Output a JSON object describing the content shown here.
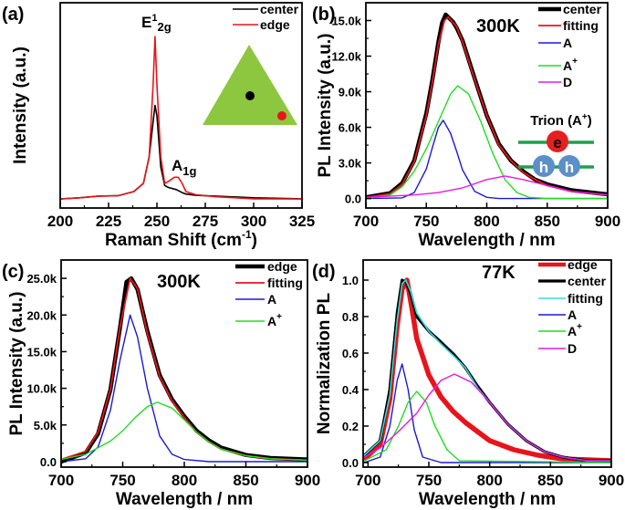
{
  "colors": {
    "black": "#000000",
    "red": "#e8141b",
    "blue": "#1a1ad6",
    "green": "#22dd22",
    "magenta": "#e619e6",
    "cyan": "#33dddd",
    "flake": "#8dc63f",
    "hole": "#5b8fc9"
  },
  "chart_data": [
    {
      "panel_label": "(a)",
      "type": "line",
      "xlabel": "Raman Shift (cm",
      "xlabel_sup": "-1",
      "xlabel_end": ")",
      "ylabel": "Intensity (a.u.)",
      "xlim": [
        200,
        325
      ],
      "ylim": [
        0,
        1
      ],
      "xticks": [
        200,
        225,
        250,
        275,
        300,
        325
      ],
      "xtick_labels": [
        "200",
        "225",
        "250",
        "275",
        "300",
        "325"
      ],
      "yticks": [],
      "ytick_labels": [],
      "legend": "top-right",
      "annotations": [
        {
          "base": "E",
          "sup": "1",
          "sub": "2g"
        },
        {
          "base": "A",
          "sup": "",
          "sub": "1g"
        }
      ],
      "inset": {
        "shape": "triangle",
        "markers": [
          {
            "name": "center",
            "color": "#000000"
          },
          {
            "name": "edge",
            "color": "#e8141b"
          }
        ]
      },
      "series": [
        {
          "name": "center",
          "color": "#000000",
          "width": 1.6,
          "x": [
            200,
            210,
            220,
            230,
            238,
            243,
            246,
            248,
            249,
            250,
            252,
            254,
            256,
            260,
            263,
            265,
            270,
            280,
            300,
            325
          ],
          "y": [
            0.044,
            0.05,
            0.058,
            0.06,
            0.08,
            0.12,
            0.25,
            0.42,
            0.5,
            0.45,
            0.2,
            0.11,
            0.1,
            0.09,
            0.075,
            0.068,
            0.062,
            0.058,
            0.05,
            0.045
          ]
        },
        {
          "name": "edge",
          "color": "#e8141b",
          "width": 1.6,
          "x": [
            200,
            210,
            220,
            230,
            238,
            243,
            246,
            248,
            249,
            250,
            252,
            254,
            256,
            259,
            261,
            263,
            265,
            270,
            280,
            300,
            325
          ],
          "y": [
            0.044,
            0.05,
            0.058,
            0.06,
            0.08,
            0.12,
            0.25,
            0.6,
            0.835,
            0.6,
            0.25,
            0.12,
            0.13,
            0.15,
            0.15,
            0.12,
            0.08,
            0.065,
            0.055,
            0.045,
            0.044
          ]
        }
      ]
    },
    {
      "panel_label": "(b)",
      "type": "line",
      "title": "300K",
      "xlabel": "Wavelength / nm",
      "ylabel": "PL Intensity (a.u.)",
      "xlim": [
        700,
        900
      ],
      "ylim": [
        -0.8,
        16.5
      ],
      "y_unit": "k",
      "xticks": [
        700,
        750,
        800,
        850,
        900
      ],
      "xtick_labels": [
        "700",
        "750",
        "800",
        "850",
        "900"
      ],
      "yticks": [
        0,
        3,
        6,
        9,
        12,
        15
      ],
      "ytick_labels": [
        "0.0",
        "3.0k",
        "6.0k",
        "9.0k",
        "12.0k",
        "15.0k"
      ],
      "legend": "top-right",
      "inset": {
        "title": "Trion (A",
        "title_sup": "+",
        "title_end": ")",
        "electron": "e",
        "hole": "h"
      },
      "series": [
        {
          "name": "center",
          "color": "#000000",
          "width": 4.5,
          "x": [
            700,
            720,
            730,
            740,
            750,
            755,
            760,
            763,
            766,
            768,
            772,
            775,
            780,
            790,
            800,
            810,
            820,
            830,
            840,
            850,
            870,
            900
          ],
          "y": [
            0.1,
            0.45,
            1.3,
            3.2,
            7.2,
            10,
            13.2,
            14.8,
            15.5,
            15.3,
            14.9,
            14.4,
            13.3,
            10.1,
            7,
            4.6,
            3.2,
            2.3,
            1.6,
            1.2,
            0.7,
            0.35
          ]
        },
        {
          "name": "fitting",
          "color": "#e8141b",
          "width": 1.8,
          "x": [
            700,
            720,
            730,
            740,
            750,
            755,
            760,
            765,
            768,
            775,
            780,
            790,
            800,
            810,
            820,
            830,
            840,
            850,
            870,
            900
          ],
          "y": [
            0.1,
            0.4,
            1.2,
            3.1,
            7,
            9.8,
            13,
            15,
            15.3,
            14.5,
            13.2,
            10,
            7,
            4.5,
            3.2,
            2.2,
            1.6,
            1.1,
            0.6,
            0.3
          ]
        },
        {
          "name": "A",
          "color": "#1a1ad6",
          "width": 1.4,
          "x": [
            700,
            730,
            740,
            750,
            755,
            760,
            764,
            770,
            775,
            780,
            790,
            800,
            810,
            900
          ],
          "y": [
            0,
            0.05,
            0.5,
            2.5,
            4.3,
            6,
            6.6,
            5.5,
            4,
            2.4,
            0.6,
            0.1,
            0,
            0
          ]
        },
        {
          "name": "A",
          "sup": "+",
          "color": "#22dd22",
          "width": 1.4,
          "x": [
            700,
            720,
            730,
            740,
            750,
            760,
            770,
            776,
            785,
            795,
            805,
            815,
            825,
            835,
            850,
            900
          ],
          "y": [
            0,
            0.3,
            1,
            2.3,
            4.2,
            6.5,
            8.8,
            9.5,
            8.8,
            6.5,
            3.8,
            1.6,
            0.5,
            0.1,
            0,
            0
          ]
        },
        {
          "name": "D",
          "color": "#e619e6",
          "width": 1.4,
          "x": [
            700,
            740,
            760,
            780,
            800,
            815,
            830,
            850,
            870,
            900
          ],
          "y": [
            0.1,
            0.3,
            0.5,
            0.9,
            1.6,
            1.9,
            1.6,
            1.1,
            0.6,
            0.3
          ]
        }
      ]
    },
    {
      "panel_label": "(c)",
      "type": "line",
      "title": "300K",
      "xlabel": "Wavelength / nm",
      "ylabel": "PL Intensity (a.u.)",
      "xlim": [
        700,
        900
      ],
      "ylim": [
        -0.75,
        27.5
      ],
      "y_unit": "k",
      "xticks": [
        700,
        750,
        800,
        850,
        900
      ],
      "xtick_labels": [
        "700",
        "750",
        "800",
        "850",
        "900"
      ],
      "yticks": [
        0,
        5,
        10,
        15,
        20,
        25
      ],
      "ytick_labels": [
        "0.0",
        "5.0k",
        "10.0k",
        "15.0k",
        "20.0k",
        "25.0k"
      ],
      "legend": "top-right",
      "series": [
        {
          "name": "edge",
          "color": "#000000",
          "width": 4.5,
          "x": [
            700,
            720,
            730,
            740,
            748,
            753,
            757,
            762,
            770,
            780,
            790,
            800,
            810,
            820,
            830,
            850,
            870,
            900
          ],
          "y": [
            0,
            1.2,
            3.8,
            9.8,
            18.5,
            24.5,
            25,
            23.5,
            17.8,
            11.8,
            8.5,
            6.2,
            4.2,
            2.9,
            1.9,
            0.9,
            0.5,
            0.3
          ]
        },
        {
          "name": "fitting",
          "color": "#e8141b",
          "width": 1.8,
          "x": [
            700,
            720,
            730,
            740,
            748,
            756,
            762,
            770,
            780,
            790,
            800,
            810,
            820,
            830,
            850,
            870,
            900
          ],
          "y": [
            0.3,
            1.4,
            4,
            9.8,
            18.5,
            25,
            23.6,
            17.5,
            11.6,
            8.3,
            6,
            4,
            2.7,
            1.7,
            0.8,
            0.4,
            0.2
          ]
        },
        {
          "name": "A",
          "color": "#1a1ad6",
          "width": 1.4,
          "x": [
            700,
            720,
            730,
            740,
            748,
            756,
            762,
            770,
            780,
            790,
            800,
            820,
            900
          ],
          "y": [
            0,
            0.4,
            2,
            7,
            14,
            20,
            17,
            10,
            3.5,
            1,
            0.3,
            0,
            0
          ]
        },
        {
          "name": "A",
          "sup": "+",
          "color": "#22dd22",
          "width": 1.4,
          "x": [
            700,
            720,
            740,
            750,
            760,
            770,
            778,
            790,
            800,
            810,
            820,
            830,
            850,
            870,
            900
          ],
          "y": [
            0.3,
            1,
            2.8,
            4.2,
            6,
            7.5,
            8.1,
            7.3,
            5.7,
            4,
            2.7,
            1.7,
            0.8,
            0.4,
            0.2
          ]
        }
      ]
    },
    {
      "panel_label": "(d)",
      "type": "line",
      "title": "77K",
      "xlabel": "Wavelength / nm",
      "ylabel": "Normalization PL",
      "xlim": [
        696,
        900
      ],
      "ylim": [
        -0.025,
        1.11
      ],
      "xticks": [
        700,
        750,
        800,
        850,
        900
      ],
      "xtick_labels": [
        "700",
        "750",
        "800",
        "850",
        "900"
      ],
      "yticks": [
        0,
        0.2,
        0.4,
        0.6,
        0.8,
        1.0
      ],
      "ytick_labels": [
        "0.0",
        "0.2",
        "0.4",
        "0.6",
        "0.8",
        "1.0"
      ],
      "legend": "top-right",
      "series": [
        {
          "name": "edge",
          "color": "#e8141b",
          "width": 5.5,
          "x": [
            697,
            710,
            718,
            724,
            728,
            732,
            736,
            740,
            750,
            760,
            770,
            780,
            790,
            800,
            820,
            840,
            860,
            900
          ],
          "y": [
            0.02,
            0.1,
            0.35,
            0.75,
            0.95,
            1.0,
            0.85,
            0.68,
            0.48,
            0.36,
            0.28,
            0.22,
            0.17,
            0.12,
            0.07,
            0.04,
            0.02,
            0.01
          ]
        },
        {
          "name": "center",
          "color": "#000000",
          "width": 3.2,
          "x": [
            697,
            710,
            718,
            724,
            728,
            731,
            735,
            740,
            750,
            760,
            771,
            780,
            790,
            800,
            815,
            830,
            845,
            860,
            880,
            900
          ],
          "y": [
            0.04,
            0.12,
            0.4,
            0.82,
            1.0,
            0.99,
            0.93,
            0.8,
            0.72,
            0.66,
            0.59,
            0.52,
            0.42,
            0.33,
            0.21,
            0.12,
            0.06,
            0.03,
            0.01,
            0.01
          ]
        },
        {
          "name": "fitting",
          "color": "#33dddd",
          "width": 1.6,
          "x": [
            697,
            710,
            718,
            724,
            728,
            731,
            735,
            740,
            750,
            760,
            771,
            780,
            790,
            800,
            815,
            830,
            845,
            860,
            880,
            900
          ],
          "y": [
            0.04,
            0.12,
            0.37,
            0.78,
            0.98,
            1.0,
            0.94,
            0.82,
            0.72,
            0.65,
            0.58,
            0.52,
            0.41,
            0.33,
            0.21,
            0.12,
            0.06,
            0.03,
            0.01,
            0.01
          ]
        },
        {
          "name": "A",
          "color": "#1a1ad6",
          "width": 1.4,
          "x": [
            697,
            710,
            718,
            724,
            728,
            733,
            738,
            745,
            760,
            900
          ],
          "y": [
            0,
            0.03,
            0.2,
            0.45,
            0.54,
            0.4,
            0.18,
            0.03,
            0,
            0
          ]
        },
        {
          "name": "A",
          "sup": "+",
          "color": "#22dd22",
          "width": 1.4,
          "x": [
            697,
            715,
            725,
            733,
            740,
            748,
            755,
            765,
            775,
            900
          ],
          "y": [
            0.01,
            0.07,
            0.2,
            0.33,
            0.39,
            0.33,
            0.2,
            0.07,
            0.01,
            0
          ]
        },
        {
          "name": "D",
          "color": "#e619e6",
          "width": 1.4,
          "x": [
            697,
            710,
            725,
            740,
            750,
            760,
            771,
            785,
            800,
            815,
            830,
            845,
            860,
            880,
            900
          ],
          "y": [
            0.03,
            0.08,
            0.17,
            0.27,
            0.37,
            0.45,
            0.485,
            0.44,
            0.33,
            0.21,
            0.12,
            0.06,
            0.03,
            0.01,
            0.01
          ]
        }
      ]
    }
  ]
}
